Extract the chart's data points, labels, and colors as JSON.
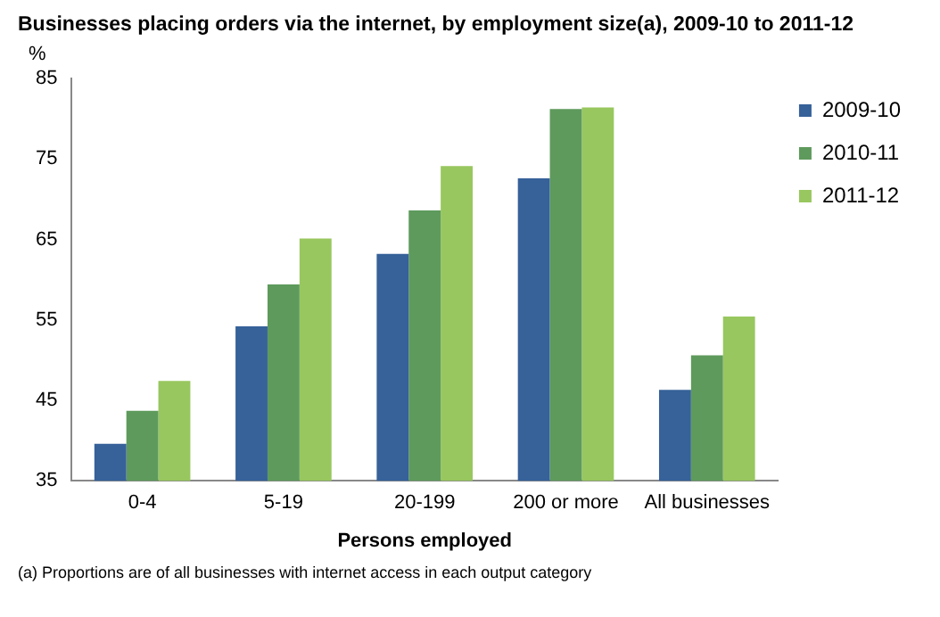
{
  "chart_data": {
    "type": "bar",
    "title": "Businesses placing orders via the internet, by employment size(a), 2009-10 to 2011-12",
    "ylabel": "%",
    "xlabel": "Persons employed",
    "categories": [
      "0-4",
      "5-19",
      "20-199",
      "200 or more",
      "All businesses"
    ],
    "series": [
      {
        "name": "2009-10",
        "color": "#366199",
        "values": [
          39.6,
          54.2,
          63.2,
          72.6,
          46.3
        ]
      },
      {
        "name": "2010-11",
        "color": "#5e9a5c",
        "values": [
          43.7,
          59.4,
          68.6,
          81.2,
          50.6
        ]
      },
      {
        "name": "2011-12",
        "color": "#98c75f",
        "values": [
          47.4,
          65.1,
          74.1,
          81.4,
          55.4
        ]
      }
    ],
    "ylim": [
      35,
      85
    ],
    "yticks": [
      35,
      45,
      55,
      65,
      75,
      85
    ],
    "grid": false,
    "legend": "right",
    "annotations": [
      "(a) Proportions are of all businesses with internet access in each output category"
    ]
  }
}
